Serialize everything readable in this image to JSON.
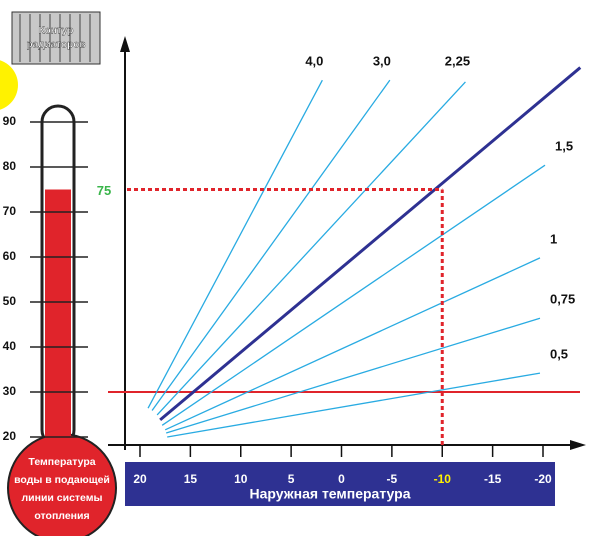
{
  "chart_data": {
    "type": "line",
    "icon_label": [
      "Контур",
      "радиаторов"
    ],
    "y_label": [
      "Температура",
      "воды в подающей",
      "линии системы",
      "отопления"
    ],
    "x_label": "Наружная температура",
    "xlim": [
      20,
      -20
    ],
    "ylim": [
      20,
      90
    ],
    "xticks": [
      20,
      15,
      10,
      5,
      0,
      -5,
      -10,
      -15,
      -20
    ],
    "yticks": [
      20,
      30,
      40,
      50,
      60,
      70,
      80,
      90
    ],
    "highlight": {
      "x": -10,
      "y": 75,
      "color": "#e0242b",
      "x_color": "#fff200",
      "y_color": "#39b54a"
    },
    "reference_line": {
      "y": 30,
      "color": "#e0242b"
    },
    "series": [
      {
        "name": "4,0",
        "color": "#29abe2",
        "x": [
          19.2,
          1.9
        ],
        "values": [
          26.4,
          99.3
        ]
      },
      {
        "name": "3,0",
        "color": "#29abe2",
        "x": [
          18.8,
          -4.8
        ],
        "values": [
          25.9,
          99.3
        ]
      },
      {
        "name": "2,25",
        "color": "#29abe2",
        "x": [
          18.3,
          -12.3
        ],
        "values": [
          24.9,
          98.9
        ]
      },
      {
        "color": "#2e3192",
        "x": [
          18.0,
          -23.7
        ],
        "values": [
          23.8,
          102.1
        ]
      },
      {
        "name": "1,5",
        "color": "#29abe2",
        "x": [
          17.8,
          -20.2
        ],
        "values": [
          22.6,
          80.4
        ]
      },
      {
        "name": "1",
        "color": "#29abe2",
        "x": [
          17.5,
          -19.7
        ],
        "values": [
          21.6,
          59.8
        ]
      },
      {
        "name": "0,75",
        "color": "#29abe2",
        "x": [
          17.4,
          -19.7
        ],
        "values": [
          20.9,
          46.4
        ]
      },
      {
        "name": "0,5",
        "color": "#29abe2",
        "x": [
          17.3,
          -19.7
        ],
        "values": [
          20.0,
          34.2
        ]
      }
    ]
  }
}
